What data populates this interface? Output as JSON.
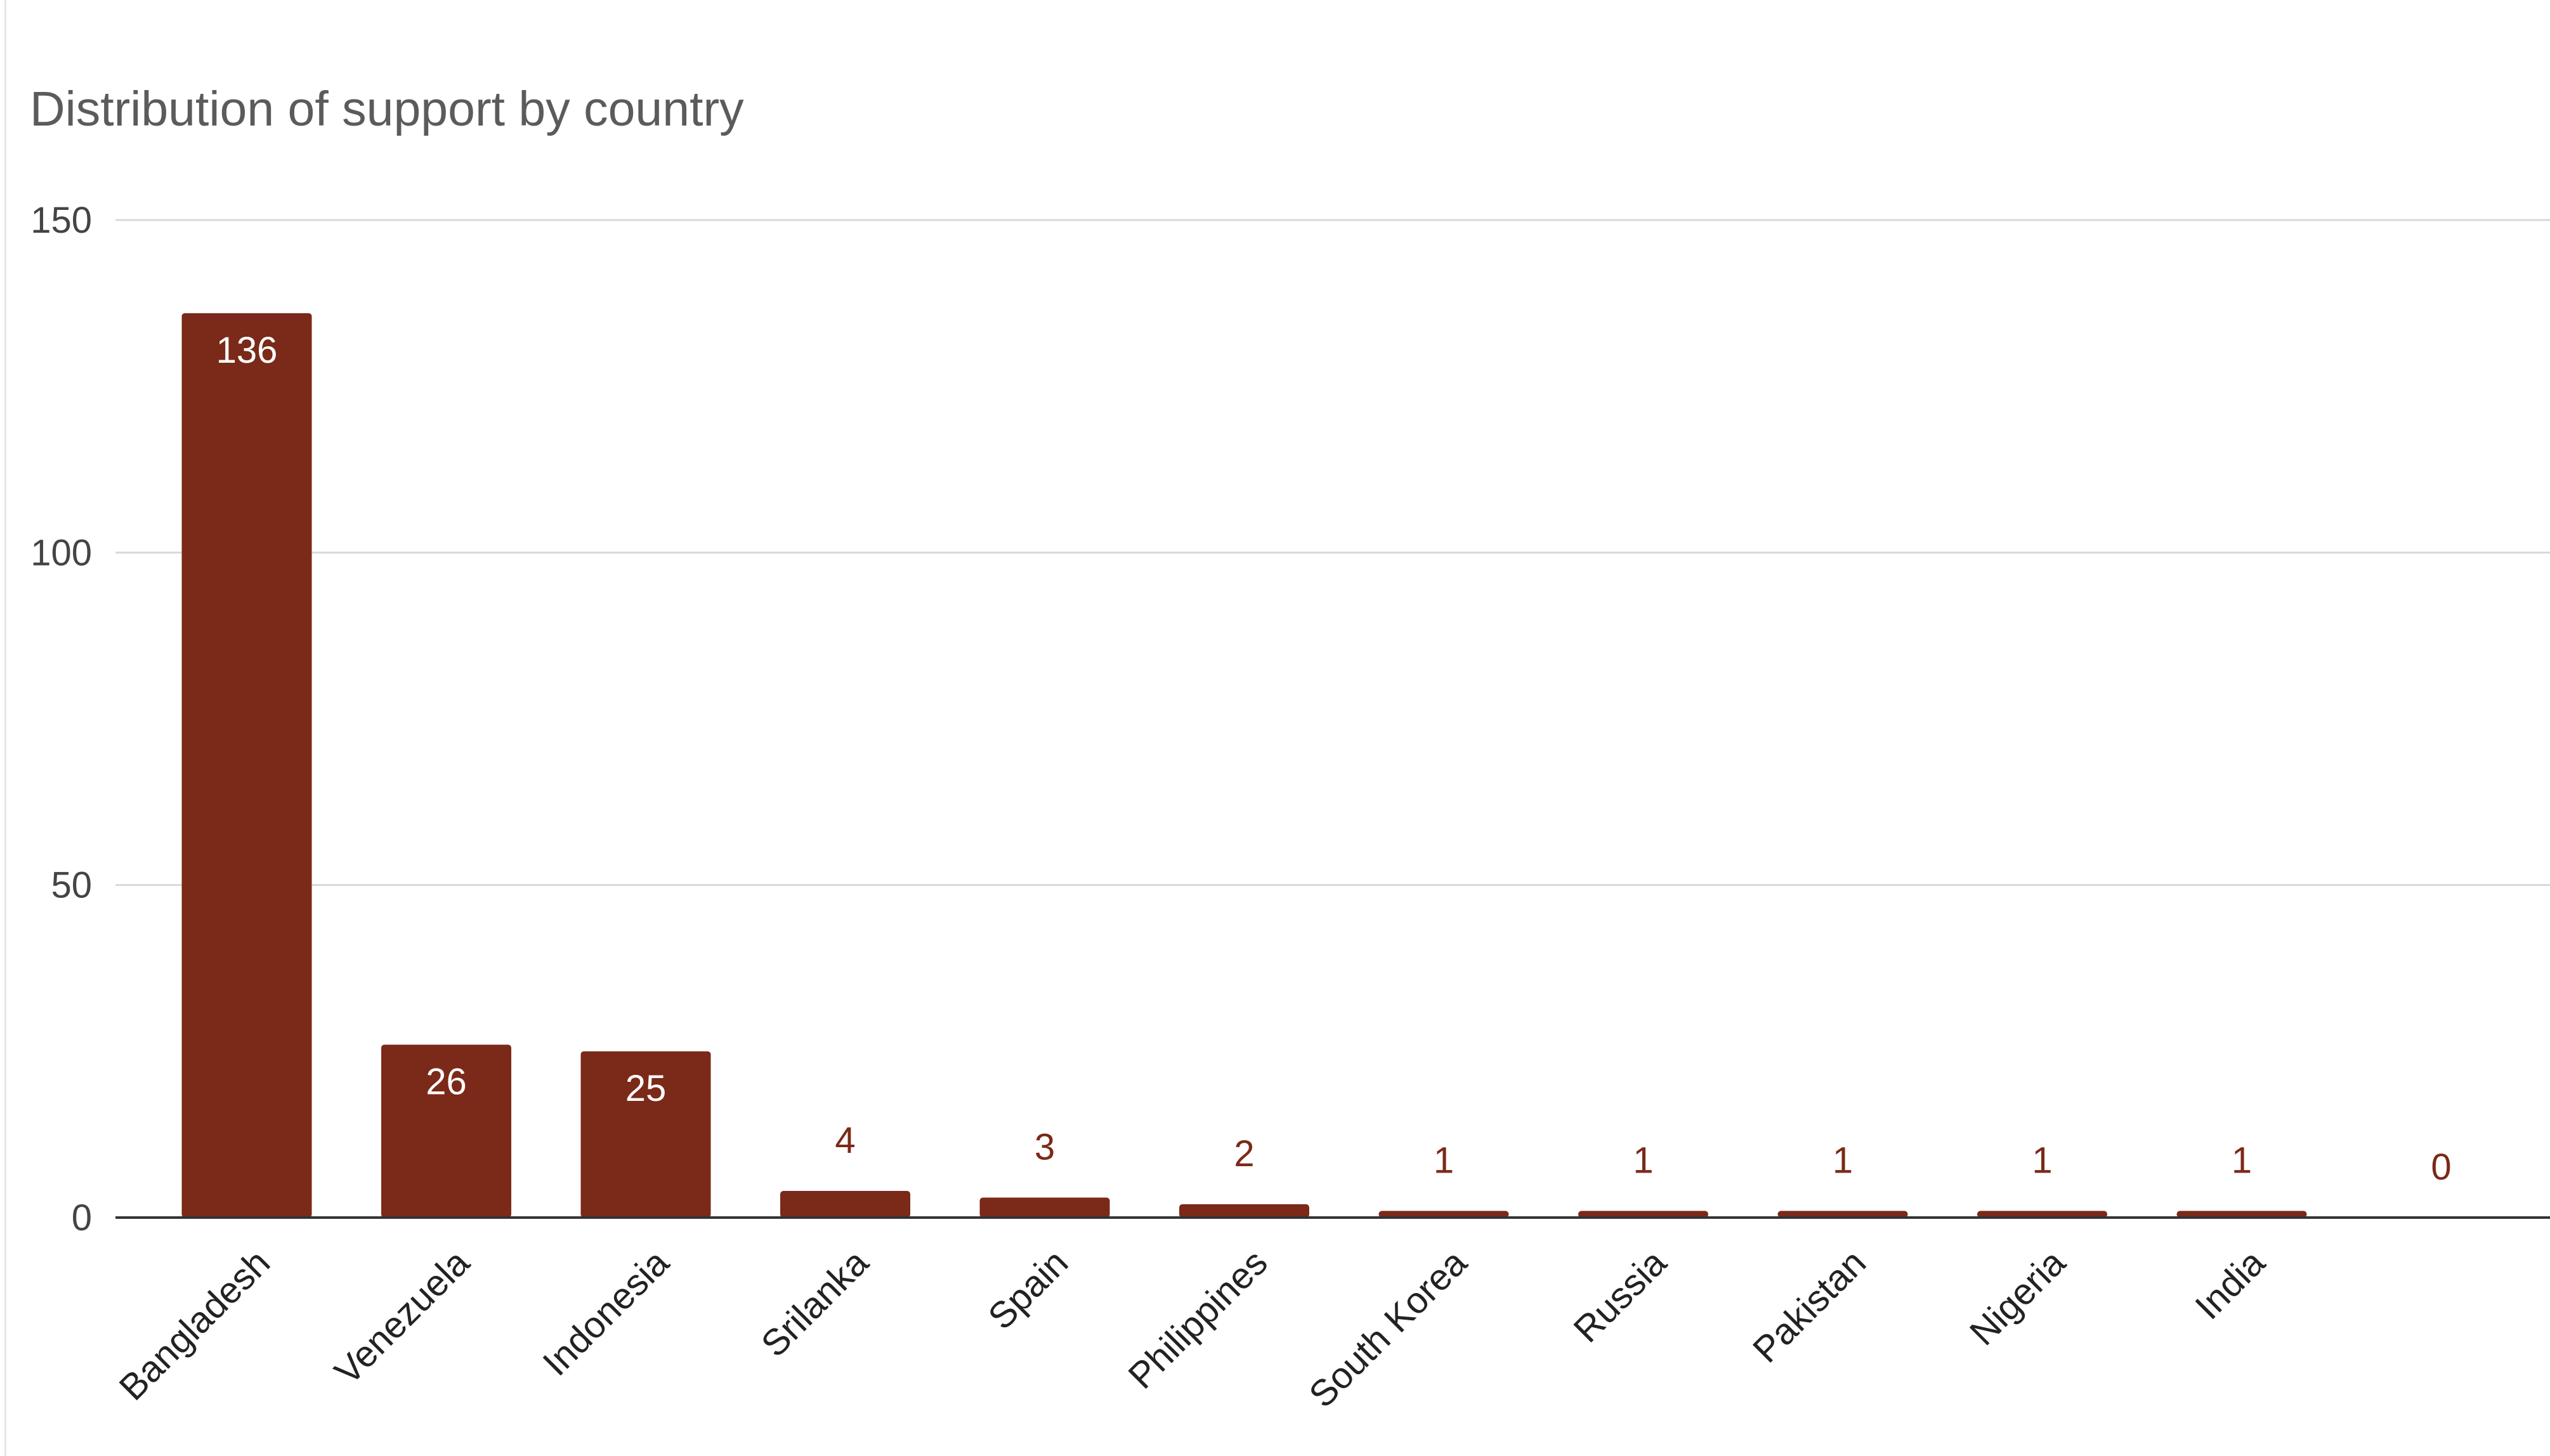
{
  "chart_data": {
    "type": "bar",
    "title": "Distribution of support by country",
    "xlabel": "",
    "ylabel": "",
    "categories": [
      "Bangladesh",
      "Venezuela",
      "Indonesia",
      "Srilanka",
      "Spain",
      "Philippines",
      "South Korea",
      "Russia",
      "Pakistan",
      "Nigeria",
      "India",
      ""
    ],
    "values": [
      136,
      26,
      25,
      4,
      3,
      2,
      1,
      1,
      1,
      1,
      1,
      0
    ],
    "ylim": [
      0,
      150
    ],
    "yticks": [
      0,
      50,
      100,
      150
    ],
    "grid": true,
    "data_labels": true,
    "legend": "none",
    "colors": {
      "bar": "#7b2918",
      "grid": "#d9d9d9",
      "axis": "#333333"
    }
  }
}
